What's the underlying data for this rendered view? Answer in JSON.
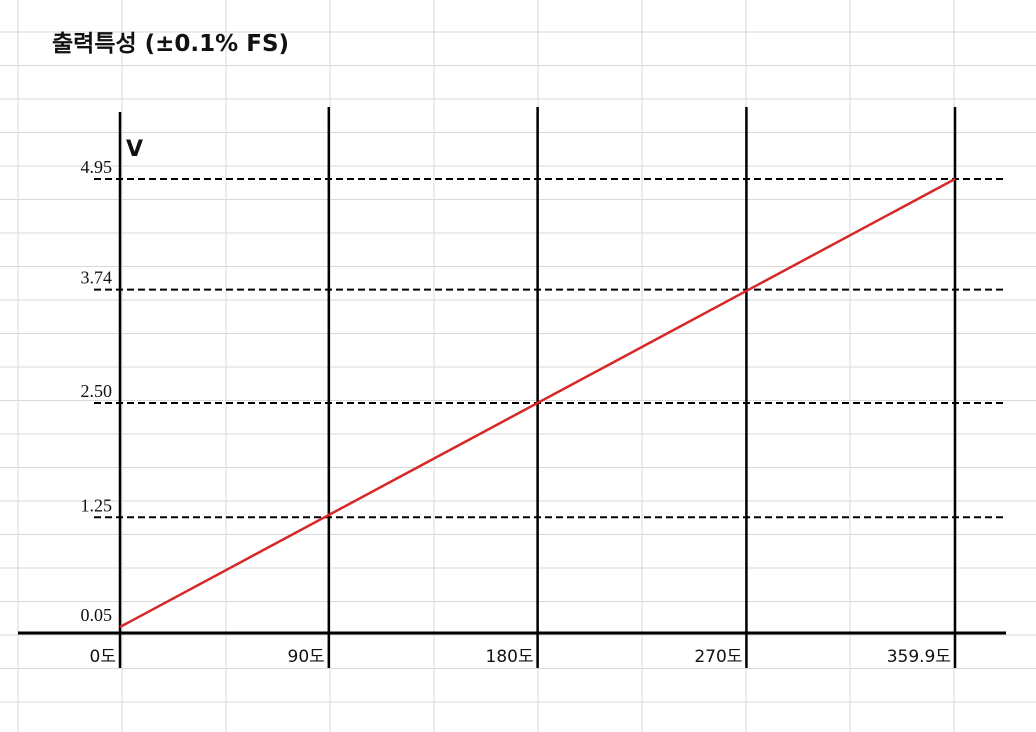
{
  "chart_data": {
    "type": "line",
    "title": "출력특성 (±0.1% FS)",
    "ylabel": "V",
    "xlabel": "",
    "x": [
      0,
      359.9
    ],
    "series": [
      {
        "values": [
          0.05,
          4.95
        ]
      }
    ],
    "x_ticks": [
      {
        "value": 0,
        "label": "0도"
      },
      {
        "value": 90,
        "label": "90도"
      },
      {
        "value": 180,
        "label": "180도"
      },
      {
        "value": 270,
        "label": "270도"
      },
      {
        "value": 359.9,
        "label": "359.9도"
      }
    ],
    "y_ticks": [
      {
        "value": 0.05,
        "label": "0.05"
      },
      {
        "value": 1.25,
        "label": "1.25"
      },
      {
        "value": 2.5,
        "label": "2.50"
      },
      {
        "value": 3.74,
        "label": "3.74"
      },
      {
        "value": 4.95,
        "label": "4.95"
      }
    ],
    "reference_lines_y": [
      1.25,
      2.5,
      3.74,
      4.95
    ],
    "xlim": [
      0,
      359.9
    ],
    "ylim": [
      0.05,
      4.95
    ],
    "grid": true,
    "colors": {
      "line": "#d62828",
      "axis": "#000000",
      "reference": "#000000",
      "background_grid": "#d9d9d9"
    }
  }
}
